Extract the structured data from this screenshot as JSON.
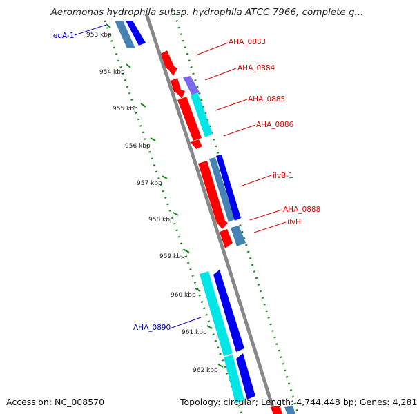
{
  "title": "Aeromonas hydrophila subsp. hydrophila ATCC 7966, complete g...",
  "footer": {
    "accession": "Accession: NC_008570",
    "topology": "Topology: circular; Length: 4,744,448 bp; Genes: 4,281"
  },
  "ticks": [
    "953 kbp",
    "954 kbp",
    "955 kbp",
    "956 kbp",
    "957 kbp",
    "958 kbp",
    "959 kbp",
    "960 kbp",
    "961 kbp",
    "962 kbp"
  ],
  "colors": {
    "backbone": "#888888",
    "ring_dots": "#1a8a1a",
    "red_gene": "#ff0000",
    "blue_gene": "#0000ee",
    "cyan_gene": "#00e5e5",
    "steel_gene": "#4682b4",
    "purple_gene": "#7b68ee",
    "red_label": "#dd0000",
    "blue_label": "#0000bb"
  },
  "genes": [
    {
      "label": "leuA-1",
      "color": "blue_label"
    },
    {
      "label": "AHA_0883",
      "color": "red_label"
    },
    {
      "label": "AHA_0884",
      "color": "red_label"
    },
    {
      "label": "AHA_0885",
      "color": "red_label"
    },
    {
      "label": "AHA_0886",
      "color": "red_label"
    },
    {
      "label": "ilvB-1",
      "color": "red_label"
    },
    {
      "label": "AHA_0888",
      "color": "red_label"
    },
    {
      "label": "ilvH",
      "color": "red_label"
    },
    {
      "label": "AHA_0890",
      "color": "blue_label"
    }
  ]
}
